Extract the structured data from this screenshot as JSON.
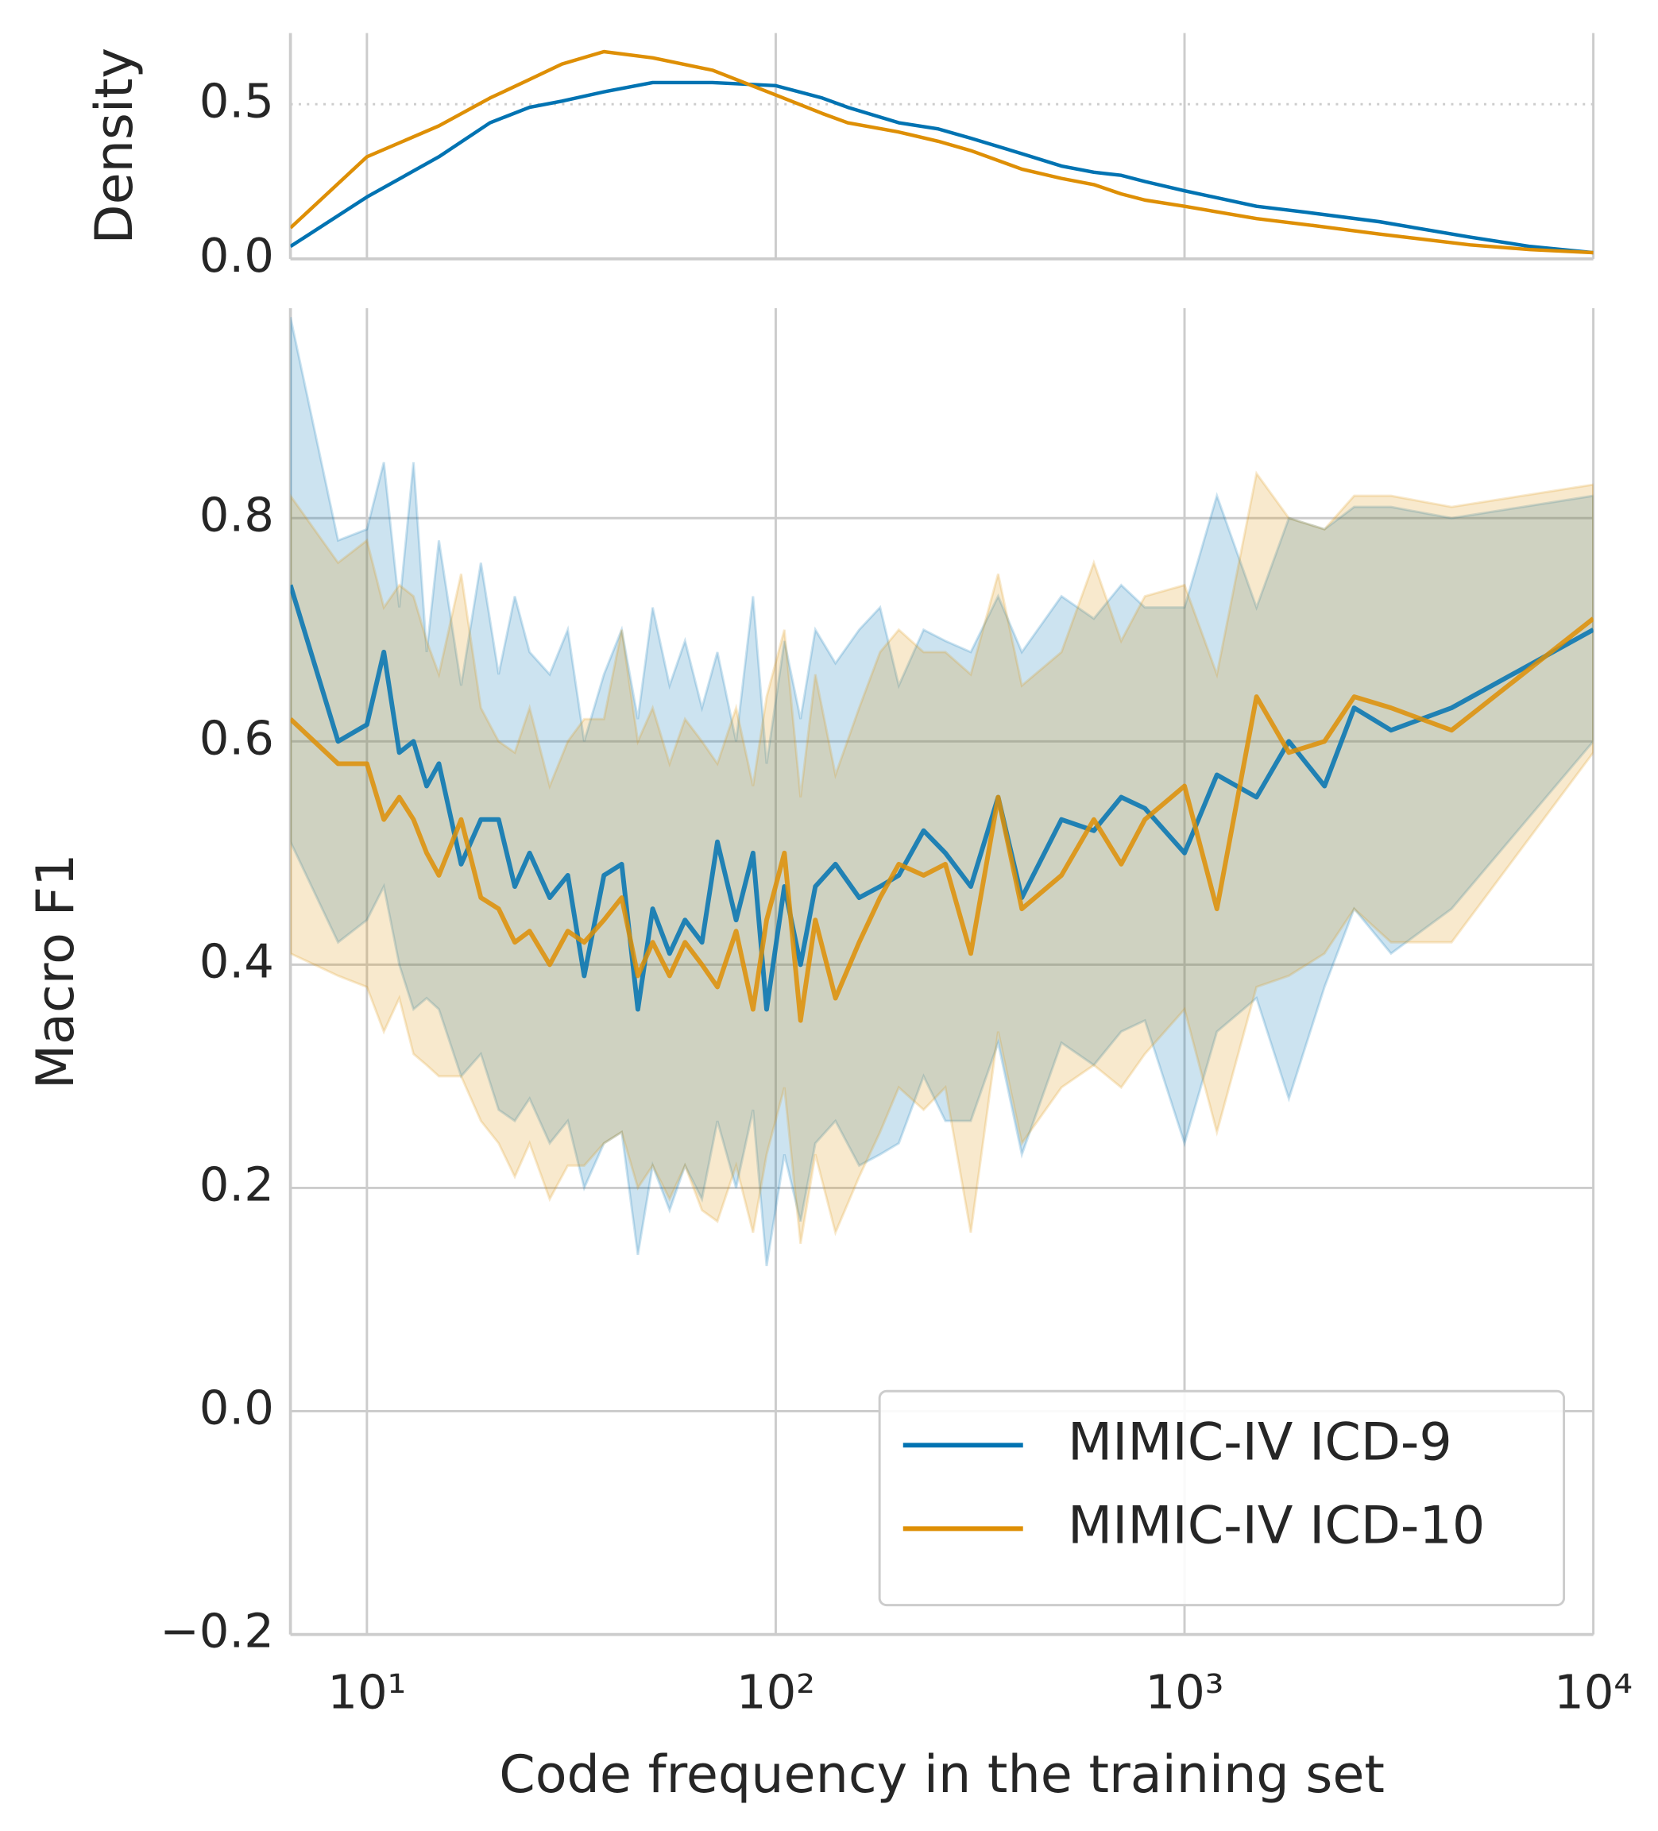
{
  "chart_data": [
    {
      "type": "line",
      "ylabel": "Density",
      "log_x": true,
      "grid": true,
      "x": [
        6.5,
        10,
        15,
        20,
        25,
        30,
        38,
        50,
        70,
        100,
        130,
        150,
        200,
        250,
        300,
        400,
        500,
        600,
        700,
        800,
        1000,
        1500,
        2000,
        3000,
        5000,
        7000,
        10000
      ],
      "series": [
        {
          "name": "MIMIC-IV ICD-9",
          "color": "#0173b2",
          "values": [
            0.04,
            0.2,
            0.33,
            0.44,
            0.49,
            0.51,
            0.54,
            0.57,
            0.57,
            0.56,
            0.52,
            0.49,
            0.44,
            0.42,
            0.39,
            0.34,
            0.3,
            0.28,
            0.27,
            0.25,
            0.22,
            0.17,
            0.15,
            0.12,
            0.07,
            0.04,
            0.02
          ]
        },
        {
          "name": "MIMIC-IV ICD-10",
          "color": "#de8f05",
          "values": [
            0.1,
            0.33,
            0.43,
            0.52,
            0.58,
            0.63,
            0.67,
            0.65,
            0.61,
            0.53,
            0.47,
            0.44,
            0.41,
            0.38,
            0.35,
            0.29,
            0.26,
            0.24,
            0.21,
            0.19,
            0.17,
            0.13,
            0.11,
            0.08,
            0.045,
            0.03,
            0.02
          ]
        }
      ],
      "xlim": [
        6.5,
        10000
      ],
      "xticks": [
        10,
        100,
        1000,
        10000
      ],
      "ylim": [
        0,
        0.73
      ],
      "yticks": [
        {
          "value": 0,
          "label": "0.0"
        },
        0.5
      ]
    },
    {
      "type": "line",
      "xlabel": "Code frequency in the training set",
      "ylabel": "Macro F1",
      "log_x": true,
      "grid": true,
      "legend": "lower right",
      "x": [
        6.5,
        8.5,
        10,
        11,
        12,
        13,
        14,
        15,
        17,
        19,
        21,
        23,
        25,
        28,
        31,
        34,
        38,
        42,
        46,
        50,
        55,
        60,
        66,
        72,
        80,
        88,
        95,
        105,
        115,
        125,
        140,
        160,
        180,
        200,
        230,
        260,
        300,
        350,
        400,
        500,
        600,
        700,
        800,
        1000,
        1200,
        1500,
        1800,
        2200,
        2600,
        3200,
        4500,
        10000
      ],
      "series": [
        {
          "name": "MIMIC-IV ICD-9",
          "color": "#0173b2",
          "values": [
            0.74,
            0.6,
            0.615,
            0.68,
            0.59,
            0.6,
            0.56,
            0.58,
            0.49,
            0.53,
            0.53,
            0.47,
            0.5,
            0.46,
            0.48,
            0.39,
            0.48,
            0.49,
            0.36,
            0.45,
            0.41,
            0.44,
            0.42,
            0.51,
            0.44,
            0.5,
            0.36,
            0.47,
            0.4,
            0.47,
            0.49,
            0.46,
            0.47,
            0.48,
            0.52,
            0.5,
            0.47,
            0.55,
            0.46,
            0.53,
            0.52,
            0.55,
            0.54,
            0.5,
            0.57,
            0.55,
            0.6,
            0.56,
            0.63,
            0.61,
            0.63,
            0.7
          ],
          "upper": [
            0.98,
            0.78,
            0.79,
            0.85,
            0.72,
            0.85,
            0.68,
            0.78,
            0.65,
            0.76,
            0.66,
            0.73,
            0.68,
            0.66,
            0.7,
            0.6,
            0.66,
            0.7,
            0.62,
            0.72,
            0.65,
            0.69,
            0.63,
            0.68,
            0.6,
            0.73,
            0.58,
            0.69,
            0.62,
            0.7,
            0.67,
            0.7,
            0.72,
            0.65,
            0.7,
            0.69,
            0.68,
            0.73,
            0.68,
            0.73,
            0.71,
            0.74,
            0.72,
            0.72,
            0.82,
            0.72,
            0.8,
            0.79,
            0.81,
            0.81,
            0.8,
            0.82
          ],
          "lower": [
            0.51,
            0.42,
            0.44,
            0.47,
            0.4,
            0.36,
            0.37,
            0.36,
            0.3,
            0.32,
            0.27,
            0.26,
            0.28,
            0.24,
            0.26,
            0.2,
            0.24,
            0.25,
            0.14,
            0.22,
            0.18,
            0.22,
            0.19,
            0.26,
            0.2,
            0.27,
            0.13,
            0.23,
            0.17,
            0.24,
            0.26,
            0.22,
            0.23,
            0.24,
            0.3,
            0.26,
            0.26,
            0.33,
            0.23,
            0.33,
            0.31,
            0.34,
            0.35,
            0.24,
            0.34,
            0.37,
            0.28,
            0.38,
            0.45,
            0.41,
            0.45,
            0.6
          ]
        },
        {
          "name": "MIMIC-IV ICD-10",
          "color": "#de8f05",
          "values": [
            0.62,
            0.58,
            0.58,
            0.53,
            0.55,
            0.53,
            0.5,
            0.48,
            0.53,
            0.46,
            0.45,
            0.42,
            0.43,
            0.4,
            0.43,
            0.42,
            0.44,
            0.46,
            0.39,
            0.42,
            0.39,
            0.42,
            0.4,
            0.38,
            0.43,
            0.36,
            0.44,
            0.5,
            0.35,
            0.44,
            0.37,
            0.42,
            0.46,
            0.49,
            0.48,
            0.49,
            0.41,
            0.55,
            0.45,
            0.48,
            0.53,
            0.49,
            0.53,
            0.56,
            0.45,
            0.64,
            0.59,
            0.6,
            0.64,
            0.63,
            0.61,
            0.71
          ],
          "upper": [
            0.82,
            0.76,
            0.78,
            0.72,
            0.74,
            0.73,
            0.69,
            0.66,
            0.75,
            0.63,
            0.6,
            0.59,
            0.63,
            0.56,
            0.6,
            0.62,
            0.62,
            0.7,
            0.6,
            0.63,
            0.58,
            0.62,
            0.6,
            0.58,
            0.63,
            0.56,
            0.64,
            0.7,
            0.55,
            0.66,
            0.57,
            0.63,
            0.68,
            0.7,
            0.68,
            0.68,
            0.66,
            0.75,
            0.65,
            0.68,
            0.76,
            0.69,
            0.73,
            0.74,
            0.66,
            0.84,
            0.8,
            0.79,
            0.82,
            0.82,
            0.81,
            0.83
          ],
          "lower": [
            0.41,
            0.39,
            0.38,
            0.34,
            0.37,
            0.32,
            0.31,
            0.3,
            0.3,
            0.26,
            0.24,
            0.21,
            0.24,
            0.19,
            0.22,
            0.22,
            0.24,
            0.25,
            0.2,
            0.22,
            0.19,
            0.22,
            0.18,
            0.17,
            0.22,
            0.16,
            0.23,
            0.29,
            0.15,
            0.23,
            0.16,
            0.21,
            0.25,
            0.29,
            0.27,
            0.29,
            0.16,
            0.34,
            0.24,
            0.29,
            0.31,
            0.29,
            0.32,
            0.36,
            0.25,
            0.38,
            0.39,
            0.41,
            0.45,
            0.42,
            0.42,
            0.59
          ]
        }
      ],
      "xlim": [
        6.5,
        10000
      ],
      "xticks": [
        {
          "value": 10,
          "label": "10¹"
        },
        {
          "value": 100,
          "label": "10²"
        },
        {
          "value": 1000,
          "label": "10³"
        },
        {
          "value": 10000,
          "label": "10⁴"
        }
      ],
      "ylim": [
        -0.2,
        0.988
      ],
      "yticks": [
        {
          "value": -0.2,
          "label": "−0.2"
        },
        {
          "value": 0,
          "label": "0.0"
        },
        0.2,
        0.4,
        0.6,
        0.8
      ]
    }
  ]
}
